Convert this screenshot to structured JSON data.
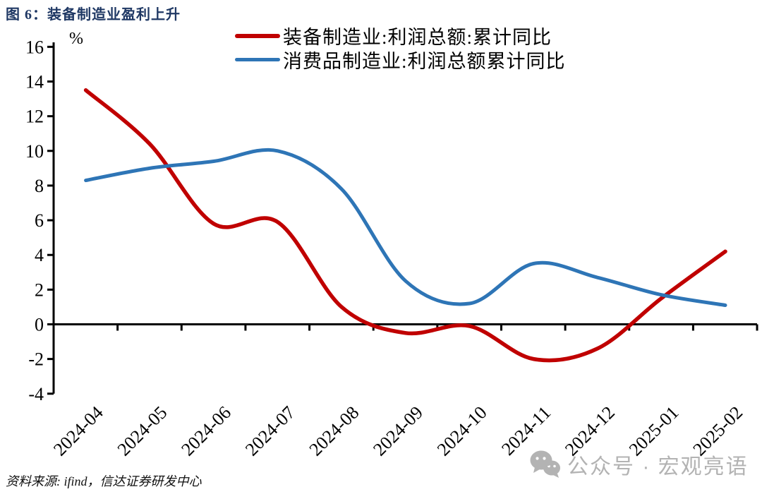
{
  "title": "图 6：装备制造业盈利上升",
  "legend": [
    {
      "label": "装备制造业:利润总额:累计同比",
      "color": "#C00000"
    },
    {
      "label": "消费品制造业:利润总额累计同比",
      "color": "#2E75B6"
    }
  ],
  "source": "资料来源: ifind，信达证券研发中心",
  "watermark": "公众号 · 宏观亮语",
  "chart_data": {
    "type": "line",
    "title": "图 6：装备制造业盈利上升",
    "categories": [
      "2024-04",
      "2024-05",
      "2024-06",
      "2024-07",
      "2024-08",
      "2024-09",
      "2024-10",
      "2024-11",
      "2024-12",
      "2025-01",
      "2025-02"
    ],
    "series": [
      {
        "name": "装备制造业:利润总额:累计同比",
        "color": "#C00000",
        "values": [
          13.5,
          10.4,
          5.8,
          5.9,
          1.0,
          -0.5,
          -0.1,
          -2.0,
          -1.4,
          1.5,
          4.2
        ]
      },
      {
        "name": "消费品制造业:利润总额累计同比",
        "color": "#2E75B6",
        "values": [
          8.3,
          9.0,
          9.4,
          10.0,
          7.8,
          2.5,
          1.2,
          3.5,
          2.7,
          1.7,
          1.1
        ]
      }
    ],
    "xlabel": "",
    "ylabel": "%",
    "ylim": [
      -4,
      16
    ],
    "ytick_step": 2,
    "grid": false,
    "legend_position": "top-center",
    "x_labels_rotated_45": true,
    "smooth_lines": true
  }
}
